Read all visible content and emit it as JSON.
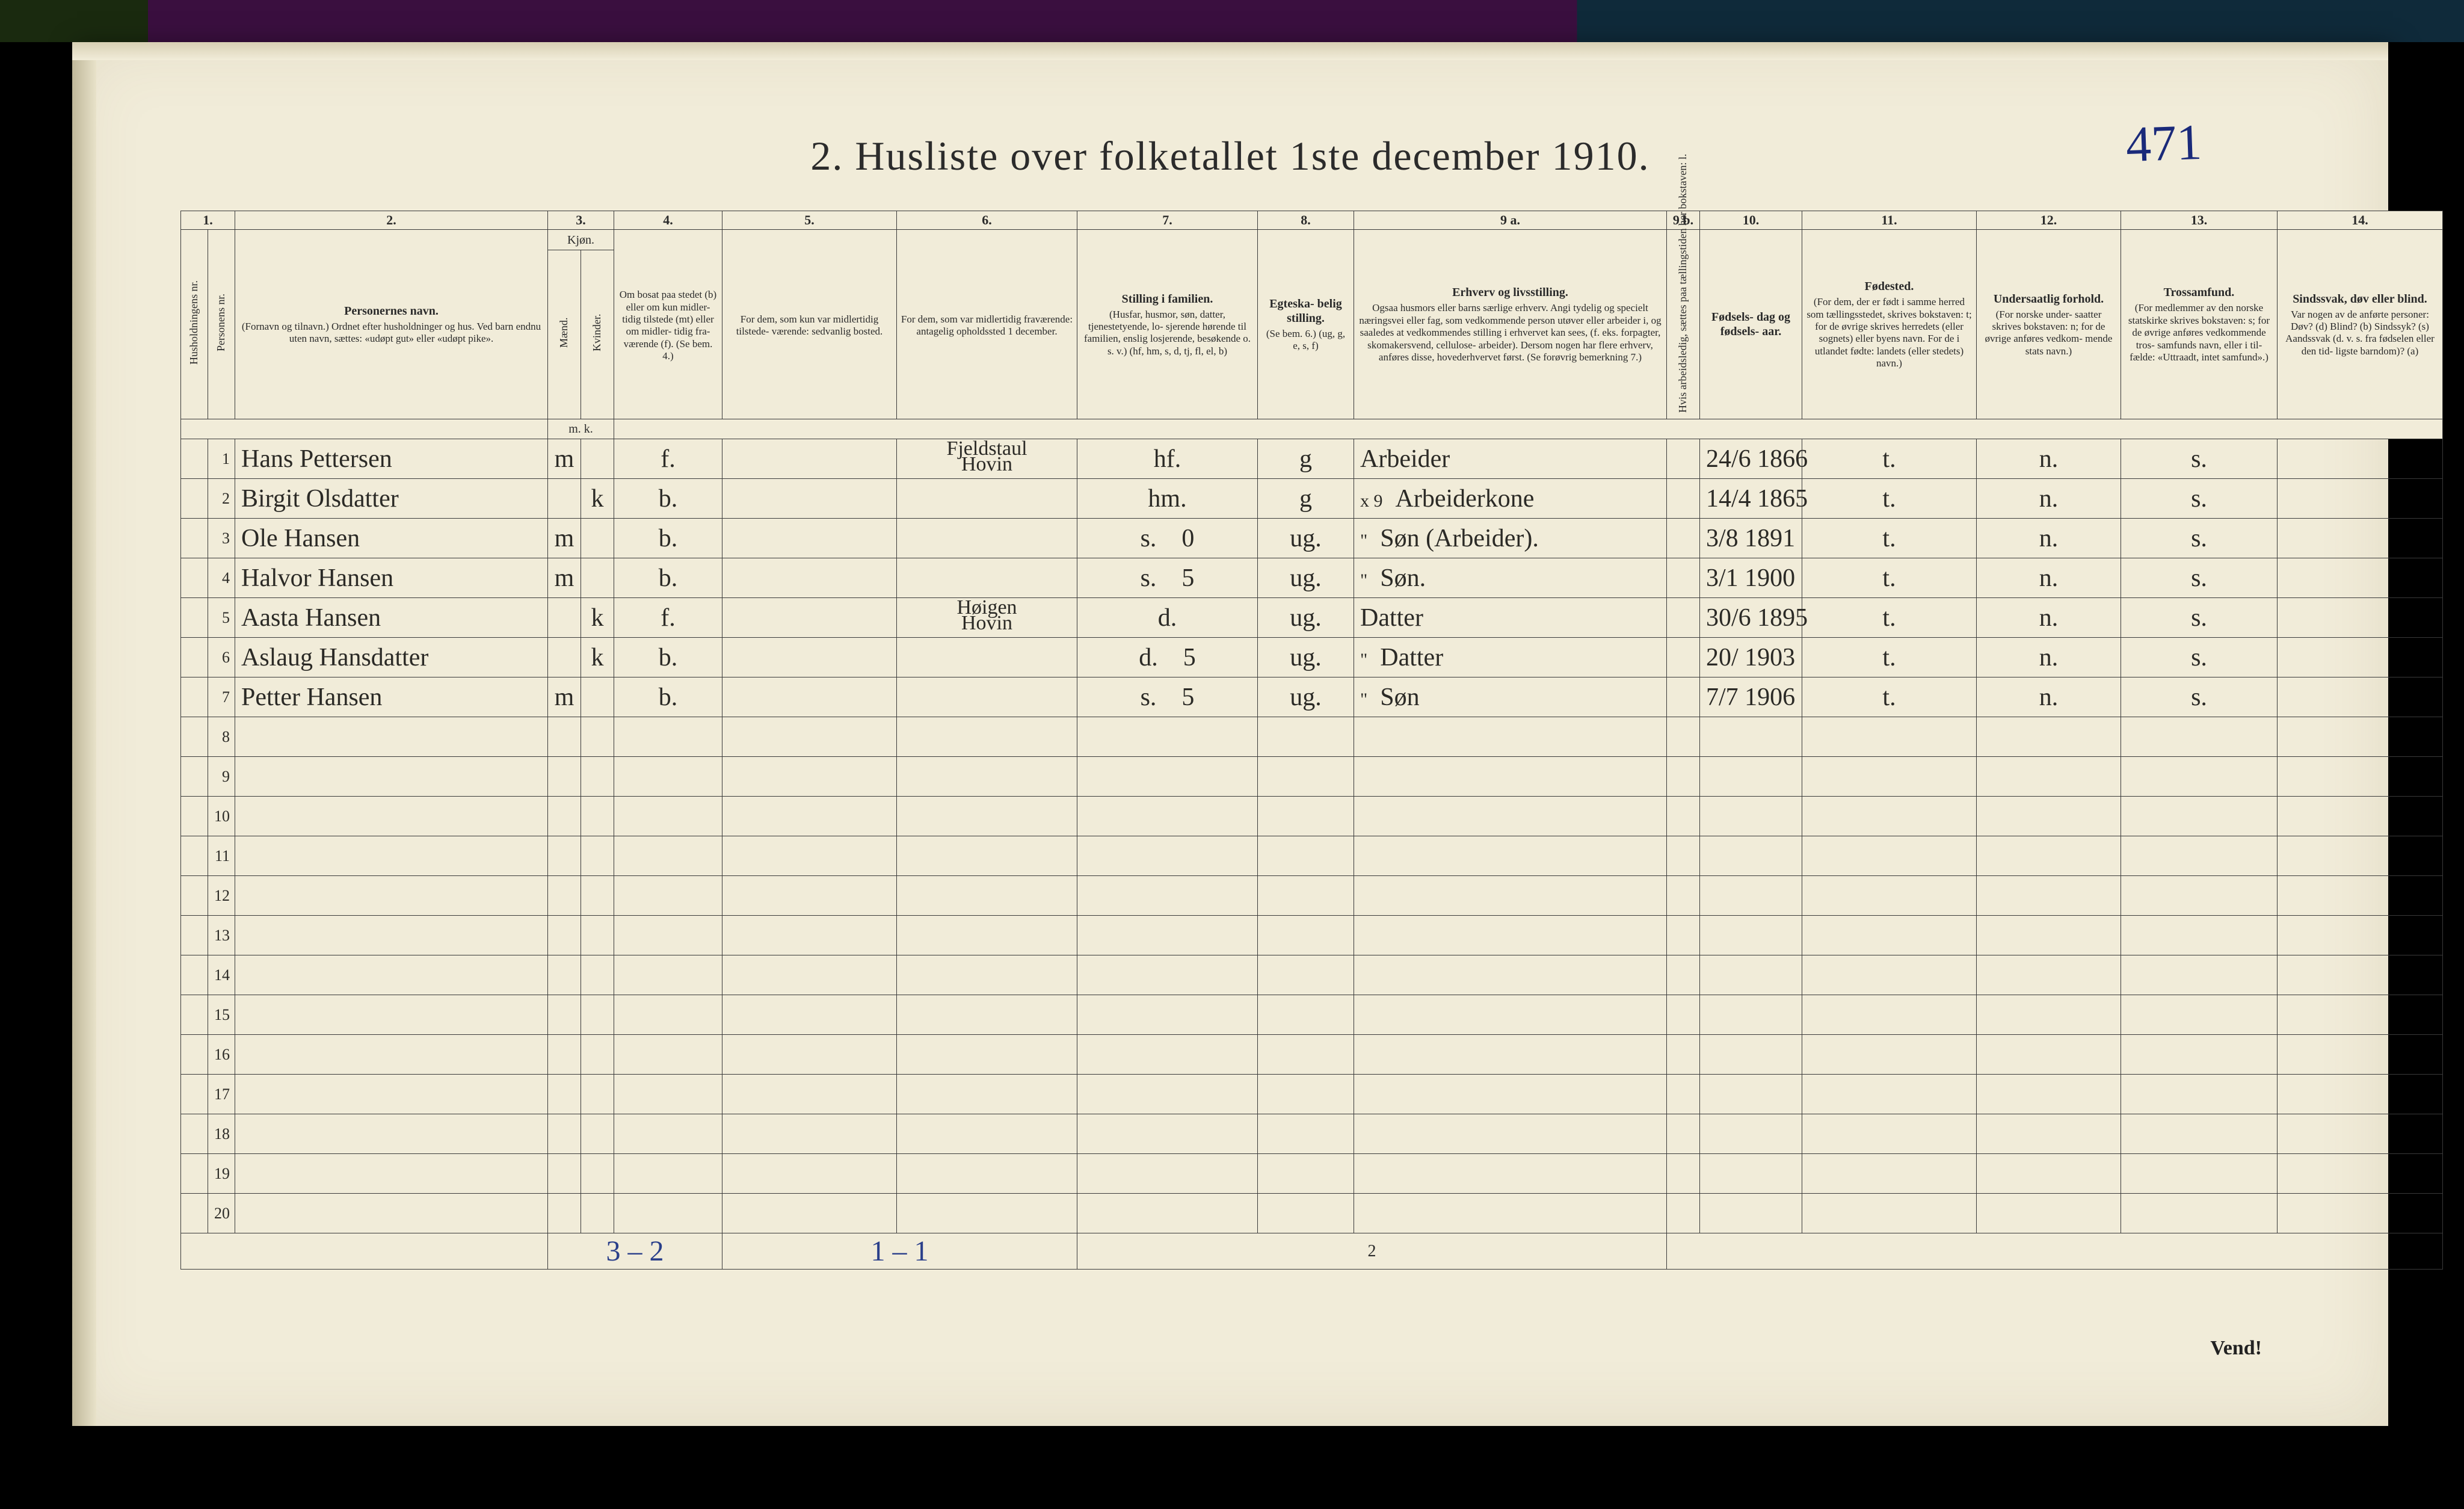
{
  "page_number_handwritten": "471",
  "title": "2.  Husliste over folketallet 1ste december 1910.",
  "footer_left": "3 – 2",
  "footer_mid": "1 – 1",
  "footer_page": "2",
  "vend": "Vend!",
  "columns": {
    "nums": [
      "1.",
      "",
      "2.",
      "3.",
      "",
      "4.",
      "5.",
      "6.",
      "7.",
      "8.",
      "9 a.",
      "9 b.",
      "10.",
      "11.",
      "12.",
      "13.",
      "14."
    ],
    "kjon_group": "Kjøn.",
    "headers": {
      "c1a": "Husholdningens nr.",
      "c1b": "Personens nr.",
      "c2": {
        "title": "Personernes navn.",
        "sub": "(Fornavn og tilnavn.)\nOrdnet efter husholdninger og hus.\nVed barn endnu uten navn, sættes: «udøpt gut»\neller «udøpt pike»."
      },
      "c3m": "Mænd.",
      "c3k": "Kvinder.",
      "c4": {
        "title": "",
        "sub": "Om bosat\npaa stedet\n(b) eller om\nkun midler-\ntidig tilstede\n(mt) eller\nom midler-\ntidig fra-\nværende (f).\n(Se bem. 4.)"
      },
      "c5": {
        "title": "",
        "sub": "For dem, som kun var\nmidlertidig tilstede-\nværende:\nsedvanlig bosted."
      },
      "c6": {
        "title": "",
        "sub": "For dem, som var\nmidlertidig\nfraværende:\nantagelig opholdssted\n1 december."
      },
      "c7": {
        "title": "Stilling i familien.",
        "sub": "(Husfar, husmor, søn,\ndatter, tjenestetyende, lo-\nsjerende hørende til familien,\nenslig losjerende, besøkende\no. s. v.)\n(hf, hm, s, d, tj, fl,\nel, b)"
      },
      "c8": {
        "title": "Egteska-\nbelig\nstilling.",
        "sub": "(Se bem. 6.)\n(ug, g,\ne, s, f)"
      },
      "c9a": {
        "title": "Erhverv og livsstilling.",
        "sub": "Ogsaa husmors eller barns særlige erhverv.\nAngi tydelig og specielt næringsvei eller fag, som\nvedkommende person utøver eller arbeider i,\nog saaledes at vedkommendes stilling i erhvervet kan\nsees, (f. eks. forpagter, skomakersvend, cellulose-\narbeider). Dersom nogen har flere erhverv,\nanføres disse, hovederhvervet først.\n(Se forøvrig bemerkning 7.)"
      },
      "c9b": "Hvis arbeidsledig, sættes\npaa tællingstiden her\nbokstaven: l.",
      "c10": {
        "title": "Fødsels-\ndag\nog\nfødsels-\naar.",
        "sub": ""
      },
      "c11": {
        "title": "Fødested.",
        "sub": "(For dem, der er født\ni samme herred som\ntællingsstedet,\nskrives bokstaven: t;\nfor de øvrige skrives\nherredets (eller sognets)\neller byens navn.\nFor de i utlandet fødte:\nlandets (eller stedets)\nnavn.)"
      },
      "c12": {
        "title": "Undersaatlig\nforhold.",
        "sub": "(For norske under-\nsaatter skrives\nbokstaven: n;\nfor de øvrige\nanføres vedkom-\nmende stats navn.)"
      },
      "c13": {
        "title": "Trossamfund.",
        "sub": "(For medlemmer av\nden norske statskirke\nskrives bokstaven: s;\nfor de øvrige anføres\nvedkommende tros-\nsamfunds navn, eller i til-\nfælde: «Uttraadt, intet\nsamfund».)"
      },
      "c14": {
        "title": "Sindssvak, døv\neller blind.",
        "sub": "Var nogen av de anførte\npersoner:\nDøv?       (d)\nBlind?     (b)\nSindssyk? (s)\nAandssvak (d. v. s. fra\nfødselen eller den tid-\nligste barndom)? (a)"
      }
    },
    "mk": "m.  k."
  },
  "rows": [
    {
      "n": "1",
      "name": "Hans Pettersen",
      "sex": "m",
      "c4": "f.",
      "c6": "Fjeldstaul\nHovin",
      "c7": "hf.",
      "c8": "g",
      "c9a": "Arbeider",
      "c10": "24/6 1866",
      "c11": "t.",
      "c12": "n.",
      "c13": "s.",
      "struck": true
    },
    {
      "n": "2",
      "name": "Birgit Olsdatter",
      "sex": "k",
      "c4": "b.",
      "c7": "hm.",
      "c8": "g",
      "c9a": "Arbeiderkone",
      "c9pre": "x 9",
      "c10": "14/4 1865",
      "c11": "t.",
      "c12": "n.",
      "c13": "s."
    },
    {
      "n": "3",
      "name": "Ole Hansen",
      "sex": "m",
      "c4": "b.",
      "c7": "s.",
      "c7b": "0",
      "c8": "ug.",
      "c9a": "Søn  (Arbeider).",
      "c9pre": "\"",
      "c10": "3/8 1891",
      "c11": "t.",
      "c12": "n.",
      "c13": "s."
    },
    {
      "n": "4",
      "name": "Halvor Hansen",
      "sex": "m",
      "c4": "b.",
      "c7": "s.",
      "c7b": "5",
      "c8": "ug.",
      "c9a": "Søn.",
      "c9pre": "\"",
      "c10": "3/1 1900",
      "c11": "t.",
      "c12": "n.",
      "c13": "s."
    },
    {
      "n": "5",
      "name": "Aasta Hansen",
      "sex": "k",
      "c4": "f.",
      "c6": "Høigen\nHovin",
      "c7": "d.",
      "c8": "ug.",
      "c9a": "Datter",
      "c10": "30/6 1895",
      "c11": "t.",
      "c12": "n.",
      "c13": "s.",
      "struck": true
    },
    {
      "n": "6",
      "name": "Aslaug Hansdatter",
      "sex": "k",
      "c4": "b.",
      "c7": "d.",
      "c7b": "5",
      "c8": "ug.",
      "c9a": "Datter",
      "c9pre": "\"",
      "c10": "20/ 1903",
      "c11": "t.",
      "c12": "n.",
      "c13": "s."
    },
    {
      "n": "7",
      "name": "Petter Hansen",
      "sex": "m",
      "c4": "b.",
      "c7": "s.",
      "c7b": "5",
      "c8": "ug.",
      "c9a": "Søn",
      "c9pre": "\"",
      "c10": "7/7 1906",
      "c11": "t.",
      "c12": "n.",
      "c13": "s."
    }
  ],
  "empty_rows_from": 8,
  "empty_rows_to": 20
}
